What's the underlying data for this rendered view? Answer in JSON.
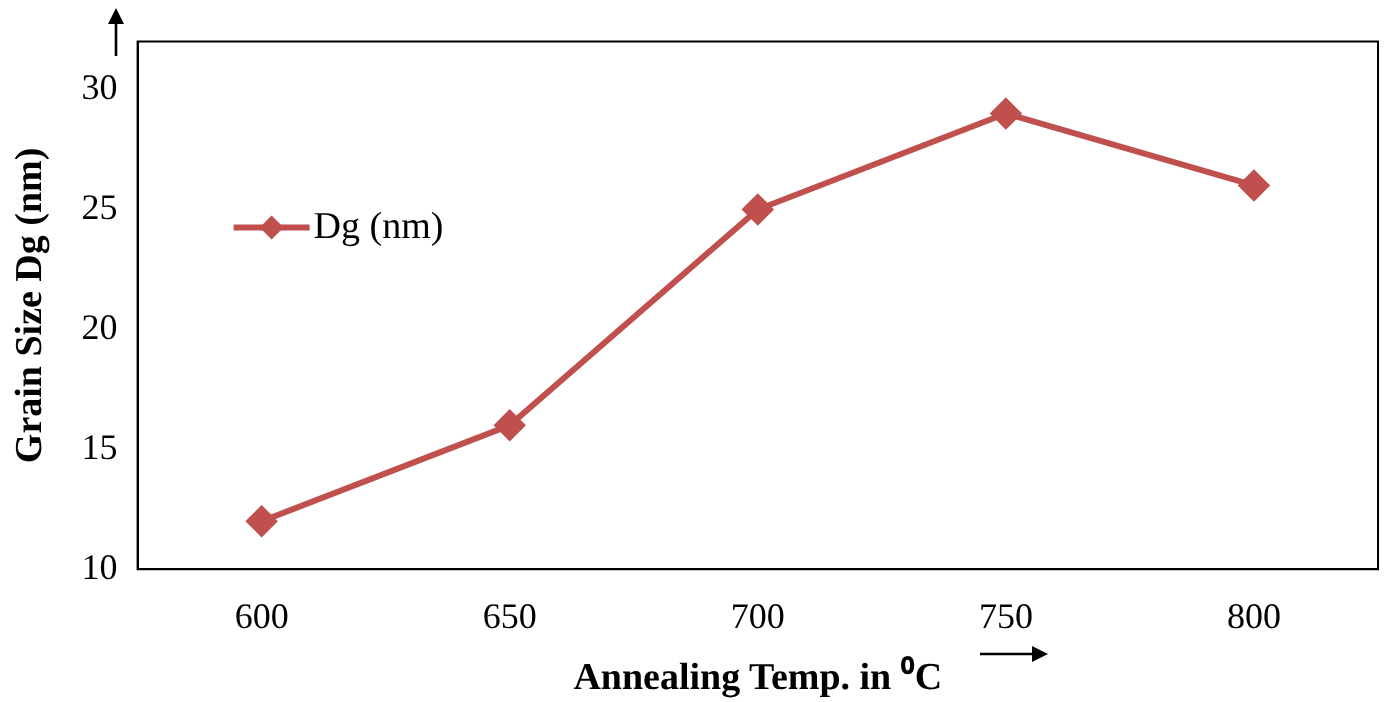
{
  "chart_data": {
    "type": "line",
    "xlabel": "Annealing Temp. in ⁰C",
    "ylabel": "Grain Size Dg (nm)",
    "categories": [
      "600",
      "650",
      "700",
      "750",
      "800"
    ],
    "series": [
      {
        "name": "Dg (nm)",
        "color": "#c0504d",
        "values": [
          12,
          16,
          25,
          29,
          26
        ]
      }
    ],
    "ylim": [
      10,
      32
    ],
    "yticks": [
      10,
      15,
      20,
      25,
      30
    ],
    "grid": false,
    "legend": "top left",
    "marker": "diamond",
    "line_style": "solid"
  }
}
